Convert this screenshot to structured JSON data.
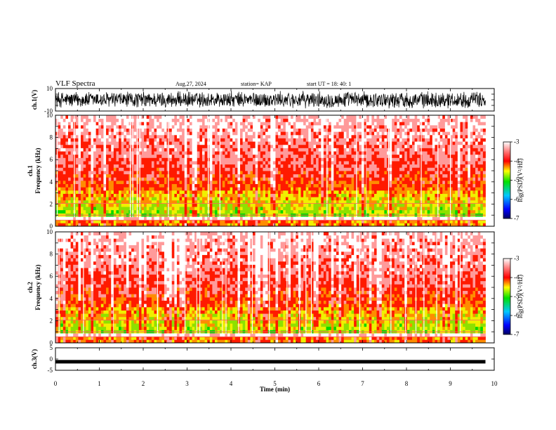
{
  "header": {
    "title": "VLF Spectra",
    "date": "Aug.27, 2024",
    "station": "station= KAP",
    "start_time": "start  UT  =   18: 40: 1"
  },
  "chart_data": [
    {
      "type": "line",
      "panel": "ch1-waveform",
      "ylabel": "ch.1(V)",
      "ylim": [
        -10,
        10
      ],
      "yticks": [
        "10",
        "-10"
      ],
      "xlim": [
        0,
        10
      ],
      "data_extent_min": 9.8,
      "amplitude_envelope": [
        8,
        -8
      ]
    },
    {
      "type": "heatmap",
      "panel": "ch1-spectrogram",
      "ylabel_line1": "ch.1",
      "ylabel_line2": "Frequency (kHz)",
      "ylim": [
        0,
        10
      ],
      "yticks": [
        "0",
        "2",
        "4",
        "6",
        "8",
        "10"
      ],
      "xlim": [
        0,
        10
      ],
      "data_extent_min": 9.8,
      "colorbar": {
        "label": "log(PSD)(V²/Hz)",
        "range": [
          -7,
          -3
        ],
        "ticks": [
          "-3",
          "-4",
          "-5",
          "-6",
          "-7"
        ]
      }
    },
    {
      "type": "heatmap",
      "panel": "ch2-spectrogram",
      "ylabel_line1": "ch.2",
      "ylabel_line2": "Frequency (kHz)",
      "ylim": [
        0,
        10
      ],
      "yticks": [
        "0",
        "2",
        "4",
        "6",
        "8",
        "10"
      ],
      "xlim": [
        0,
        10
      ],
      "data_extent_min": 9.8,
      "colorbar": {
        "label": "log(PSD)(V²/Hz)",
        "range": [
          -7,
          -3
        ],
        "ticks": [
          "-3",
          "-4",
          "-5",
          "-6",
          "-7"
        ]
      }
    },
    {
      "type": "line",
      "panel": "ch3-waveform",
      "ylabel": "ch.3(V)",
      "ylim": [
        -5,
        5
      ],
      "yticks": [
        "5",
        "0",
        "-5"
      ],
      "xlim": [
        0,
        10
      ],
      "data_extent_min": 9.8,
      "level": -1.2
    }
  ],
  "xaxis": {
    "label": "Time (min)",
    "ticks": [
      "0",
      "1",
      "2",
      "3",
      "4",
      "5",
      "6",
      "7",
      "8",
      "9",
      "10"
    ]
  }
}
